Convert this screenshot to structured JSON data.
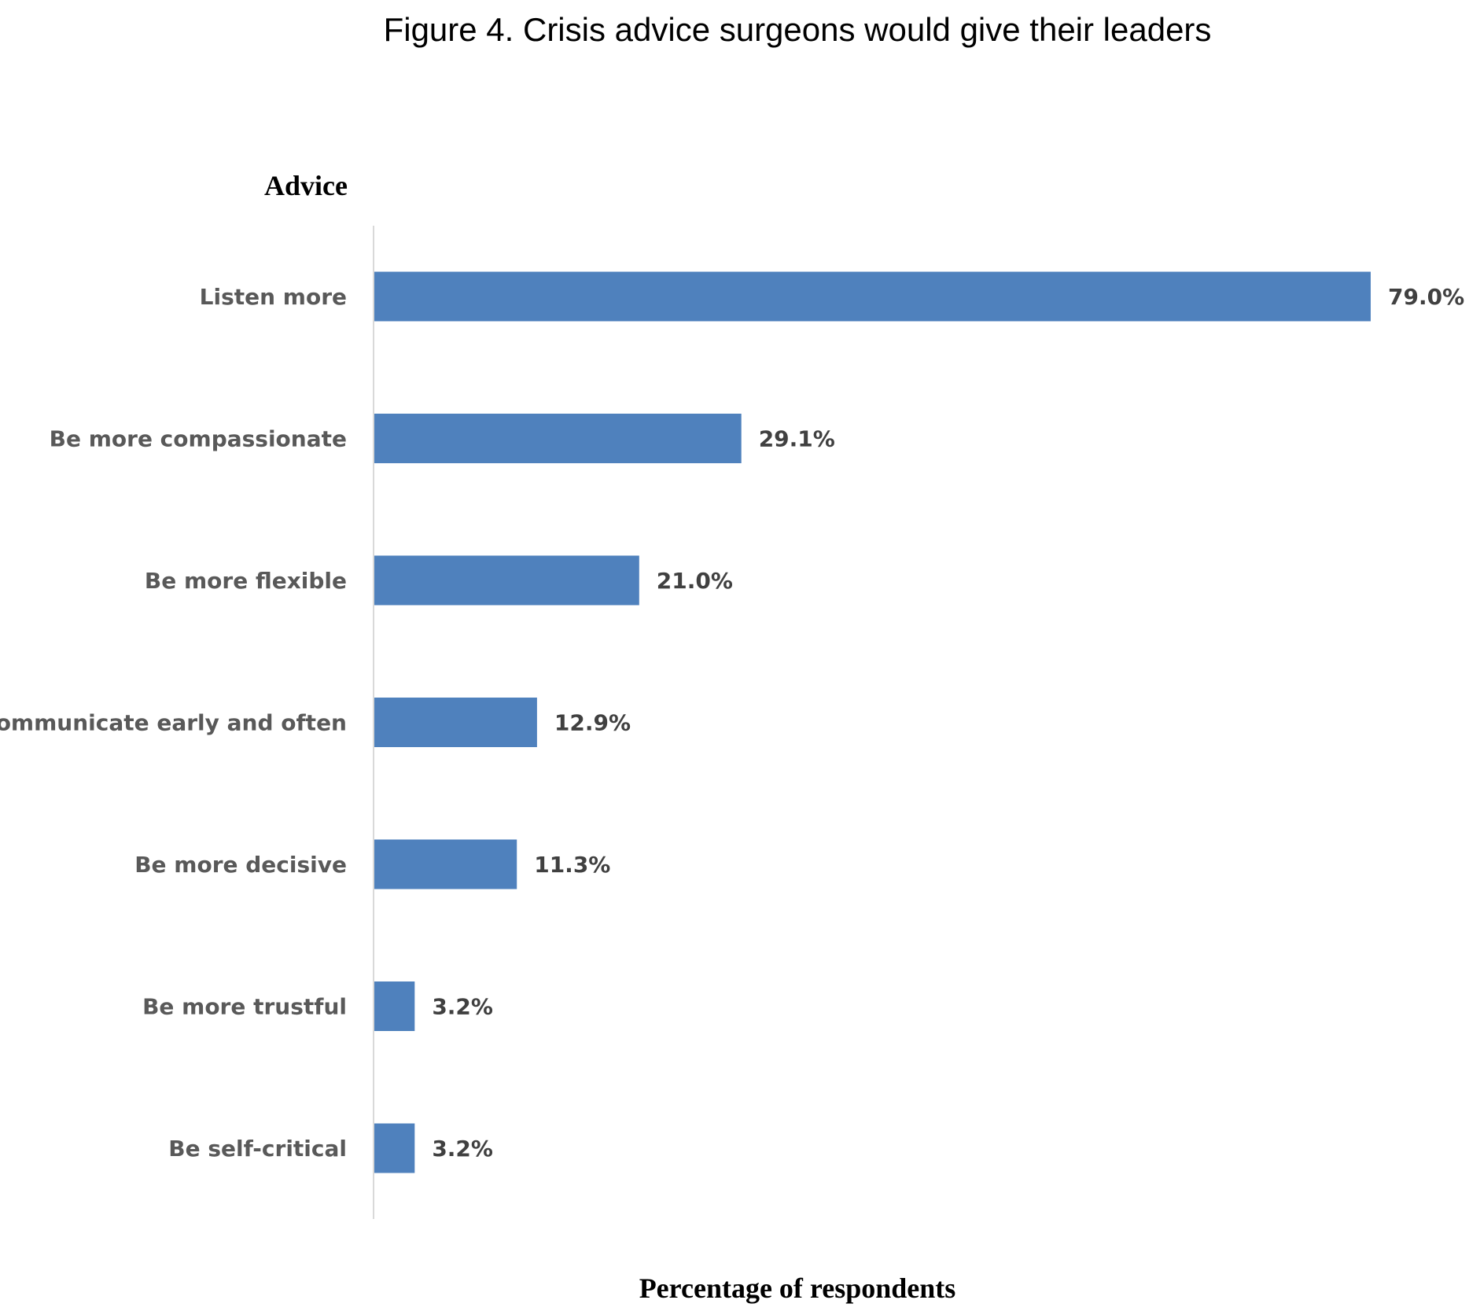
{
  "chart_data": {
    "type": "bar",
    "orientation": "horizontal",
    "title": "Figure 4. Crisis advice surgeons would give their leaders",
    "ylabel": "Advice",
    "xlabel": "Percentage of respondents",
    "categories": [
      "Listen more",
      "Be more compassionate",
      "Be more flexible",
      "Communicate early and often",
      "Be more decisive",
      "Be more trustful",
      "Be self-critical"
    ],
    "values": [
      79.0,
      29.1,
      21.0,
      12.9,
      11.3,
      3.2,
      3.2
    ],
    "data_labels": [
      "79.0%",
      "29.1%",
      "21.0%",
      "12.9%",
      "11.3%",
      "3.2%",
      "3.2%"
    ],
    "xlim": [
      0,
      79.0
    ],
    "grid": false,
    "legend": "none",
    "bar_color": "#4f81bd",
    "axis_color": "#d9d9d9"
  }
}
